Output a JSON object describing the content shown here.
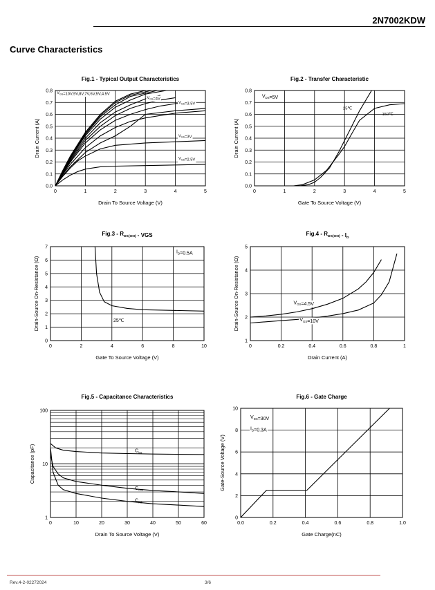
{
  "header": {
    "part_number": "2N7002KDW",
    "section_title": "Curve Characteristics"
  },
  "footer": {
    "revision": "Rev.4-2-02272024",
    "page": "3/6"
  },
  "chart_data": [
    {
      "id": "fig1",
      "type": "line",
      "title": "Fig.1 - Typical Output Characteristics",
      "xlabel": "Drain To Source Voltage (V)",
      "ylabel": "Drain Current (A)",
      "xlim": [
        0,
        5
      ],
      "ylim": [
        0,
        0.8
      ],
      "xticks": [
        0,
        1,
        2,
        3,
        4,
        5
      ],
      "yticks": [
        0.0,
        0.1,
        0.2,
        0.3,
        0.4,
        0.5,
        0.6,
        0.7,
        0.8
      ],
      "ytick_labels": [
        "0.0",
        "0.1",
        "0.2",
        "0.3",
        "0.4",
        "0.5",
        "0.6",
        "0.7",
        "0.8"
      ],
      "grid": true,
      "series": [
        {
          "name": "VGS=10V",
          "x": [
            0,
            0.25,
            0.5,
            1,
            1.5,
            2,
            2.5,
            3
          ],
          "y": [
            0,
            0.13,
            0.25,
            0.45,
            0.6,
            0.71,
            0.77,
            0.8
          ]
        },
        {
          "name": "VGS=9V",
          "x": [
            0,
            0.25,
            0.5,
            1,
            1.5,
            2,
            2.5,
            3.2
          ],
          "y": [
            0,
            0.125,
            0.24,
            0.44,
            0.59,
            0.7,
            0.76,
            0.8
          ]
        },
        {
          "name": "VGS=8V",
          "x": [
            0,
            0.25,
            0.5,
            1,
            1.5,
            2,
            2.5,
            3.4
          ],
          "y": [
            0,
            0.12,
            0.235,
            0.43,
            0.58,
            0.68,
            0.75,
            0.8
          ]
        },
        {
          "name": "VGS=7V",
          "x": [
            0,
            0.25,
            0.5,
            1,
            1.5,
            2,
            2.5,
            3,
            3.7
          ],
          "y": [
            0,
            0.115,
            0.23,
            0.42,
            0.56,
            0.66,
            0.72,
            0.77,
            0.8
          ]
        },
        {
          "name": "VGS=6V",
          "x": [
            0,
            0.25,
            0.5,
            1,
            1.5,
            2,
            2.5,
            3,
            3.5
          ],
          "y": [
            0,
            0.11,
            0.22,
            0.4,
            0.53,
            0.62,
            0.68,
            0.73,
            0.76
          ]
        },
        {
          "name": "VGS=5V",
          "x": [
            0,
            0.25,
            0.5,
            1,
            1.5,
            2,
            2.5,
            3,
            3.5,
            4
          ],
          "y": [
            0,
            0.105,
            0.21,
            0.38,
            0.5,
            0.59,
            0.65,
            0.69,
            0.72,
            0.74
          ]
        },
        {
          "name": "VGS=4.5V",
          "x": [
            0,
            0.25,
            0.5,
            1,
            1.5,
            2,
            2.5,
            3,
            3.5,
            4,
            4.5
          ],
          "y": [
            0,
            0.1,
            0.2,
            0.36,
            0.47,
            0.55,
            0.6,
            0.64,
            0.67,
            0.69,
            0.7
          ]
        },
        {
          "name": "VGS=4V",
          "x": [
            0,
            0.25,
            0.5,
            1,
            1.5,
            2,
            2.5,
            3,
            3.5,
            4,
            4.5,
            5
          ],
          "y": [
            0,
            0.095,
            0.18,
            0.32,
            0.42,
            0.49,
            0.54,
            0.57,
            0.59,
            0.61,
            0.62,
            0.63
          ]
        },
        {
          "name": "VGS=3.5V",
          "x": [
            0,
            0.25,
            0.5,
            1,
            1.5,
            2,
            2.5,
            3,
            4,
            5
          ],
          "y": [
            0,
            0.085,
            0.16,
            0.28,
            0.36,
            0.42,
            0.5,
            0.6,
            0.63,
            0.65
          ]
        },
        {
          "name": "VGS=3V",
          "x": [
            0,
            0.25,
            0.5,
            0.75,
            1,
            1.5,
            2,
            3,
            4,
            5
          ],
          "y": [
            0,
            0.08,
            0.15,
            0.21,
            0.25,
            0.31,
            0.34,
            0.36,
            0.37,
            0.38
          ]
        },
        {
          "name": "VGS=2.5V",
          "x": [
            0,
            0.25,
            0.5,
            0.75,
            1,
            1.5,
            2,
            3,
            4,
            5
          ],
          "y": [
            0,
            0.05,
            0.09,
            0.12,
            0.14,
            0.16,
            0.165,
            0.17,
            0.175,
            0.18
          ]
        }
      ],
      "annotations": [
        "VGS=10V,9V,8V,7V,6V,5V,4.5V",
        "VGS=4V",
        "VGS=3.5V",
        "VGS=3V",
        "VGS=2.5V"
      ]
    },
    {
      "id": "fig2",
      "type": "line",
      "title": "Fig.2 - Transfer Characteristic",
      "xlabel": "Gate To Source Voltage (V)",
      "ylabel": "Drain Current (A)",
      "xlim": [
        0,
        5
      ],
      "ylim": [
        0,
        0.8
      ],
      "xticks": [
        0,
        1,
        2,
        3,
        4,
        5
      ],
      "yticks": [
        0.0,
        0.1,
        0.2,
        0.3,
        0.4,
        0.5,
        0.6,
        0.7,
        0.8
      ],
      "ytick_labels": [
        "0.0",
        "0.1",
        "0.2",
        "0.3",
        "0.4",
        "0.5",
        "0.6",
        "0.7",
        "0.8"
      ],
      "grid": true,
      "series": [
        {
          "name": "25℃",
          "x": [
            0,
            1.5,
            1.8,
            2,
            2.2,
            2.5,
            2.8,
            3,
            3.2,
            3.5,
            3.9
          ],
          "y": [
            0,
            0,
            0.01,
            0.03,
            0.07,
            0.15,
            0.28,
            0.38,
            0.48,
            0.63,
            0.8
          ]
        },
        {
          "name": "150℃",
          "x": [
            0,
            1.3,
            1.6,
            2,
            2.4,
            2.8,
            3,
            3.2,
            3.5,
            4,
            4.5,
            5
          ],
          "y": [
            0,
            0,
            0.01,
            0.05,
            0.13,
            0.26,
            0.33,
            0.42,
            0.55,
            0.65,
            0.68,
            0.69
          ]
        }
      ],
      "annotations": [
        "VDS=5V",
        "25℃",
        "150℃"
      ]
    },
    {
      "id": "fig3",
      "type": "line",
      "title": "Fig.3 - RDS(ON) - VGS",
      "xlabel": "Gate To Source Voltage (V)",
      "ylabel": "Drain-Source On-Resistance (Ω)",
      "xlim": [
        0,
        10
      ],
      "ylim": [
        0,
        7
      ],
      "xticks": [
        0,
        2,
        4,
        6,
        8,
        10
      ],
      "yticks": [
        0,
        1,
        2,
        3,
        4,
        5,
        6,
        7
      ],
      "ytick_labels": [
        "0",
        "1",
        "2",
        "3",
        "4",
        "5",
        "6",
        "7"
      ],
      "grid": true,
      "series": [
        {
          "name": "25℃",
          "x": [
            2.9,
            3,
            3.2,
            3.5,
            4,
            5,
            6,
            8,
            10
          ],
          "y": [
            7,
            5,
            3.6,
            2.9,
            2.6,
            2.4,
            2.3,
            2.25,
            2.2
          ]
        }
      ],
      "annotations": [
        "ID=0.5A",
        "25℃"
      ]
    },
    {
      "id": "fig4",
      "type": "line",
      "title": "Fig.4 - RDS(ON) - ID",
      "xlabel": "Drain Current (A)",
      "ylabel": "Drain-Source On-Resistance (Ω)",
      "xlim": [
        0,
        1
      ],
      "ylim": [
        1,
        5
      ],
      "xticks": [
        0,
        0.2,
        0.4,
        0.6,
        0.8,
        1
      ],
      "xtick_labels": [
        "0",
        "0.2",
        "0.4",
        "0.6",
        "0.8",
        "1"
      ],
      "yticks": [
        1,
        2,
        3,
        4,
        5
      ],
      "ytick_labels": [
        "1",
        "2",
        "3",
        "4",
        "5"
      ],
      "grid": true,
      "series": [
        {
          "name": "VGS=4.5V",
          "x": [
            0,
            0.1,
            0.2,
            0.3,
            0.4,
            0.5,
            0.6,
            0.7,
            0.75,
            0.8,
            0.85
          ],
          "y": [
            2,
            2.05,
            2.12,
            2.22,
            2.36,
            2.55,
            2.8,
            3.2,
            3.5,
            3.9,
            4.45
          ]
        },
        {
          "name": "VGS=10V",
          "x": [
            0,
            0.1,
            0.2,
            0.3,
            0.4,
            0.5,
            0.6,
            0.7,
            0.8,
            0.85,
            0.9,
            0.95
          ],
          "y": [
            1.75,
            1.8,
            1.85,
            1.9,
            1.96,
            2.04,
            2.15,
            2.3,
            2.6,
            2.95,
            3.5,
            4.7
          ]
        }
      ],
      "annotations": [
        "VGS=4.5V",
        "VGS=10V"
      ]
    },
    {
      "id": "fig5",
      "type": "line",
      "title": "Fig.5 - Capacitance Characteristics",
      "xlabel": "Drain To Source Voltage (V)",
      "ylabel": "Capacitance (pF)",
      "xlim": [
        0,
        60
      ],
      "ylim": [
        1,
        100
      ],
      "yscale": "log",
      "xticks": [
        0,
        10,
        20,
        30,
        40,
        50,
        60
      ],
      "yticks": [
        1,
        10,
        100
      ],
      "ytick_labels": [
        "1",
        "10",
        "100"
      ],
      "grid": true,
      "series": [
        {
          "name": "Ciss",
          "x": [
            0,
            2,
            5,
            10,
            20,
            30,
            40,
            50,
            60
          ],
          "y": [
            24,
            20,
            18,
            17,
            16,
            15.6,
            15.3,
            15.1,
            15
          ]
        },
        {
          "name": "Coss",
          "x": [
            0,
            1,
            3,
            5,
            10,
            20,
            30,
            40,
            50,
            60
          ],
          "y": [
            15,
            9,
            6.5,
            5.5,
            4.7,
            4,
            3.5,
            3.2,
            3,
            2.8
          ]
        },
        {
          "name": "Crss",
          "x": [
            0,
            1,
            3,
            5,
            10,
            20,
            30,
            40,
            50,
            60
          ],
          "y": [
            20,
            7,
            4,
            3.3,
            2.8,
            2.3,
            2,
            1.8,
            1.7,
            1.6
          ]
        }
      ],
      "annotations": [
        "Ciss",
        "Coss",
        "Crss"
      ]
    },
    {
      "id": "fig6",
      "type": "line",
      "title": "Fig.6 - Gate Charge",
      "xlabel": "Gate Charge(nC)",
      "ylabel": "Gate-Source Voltage (V)",
      "xlim": [
        0,
        1.0
      ],
      "ylim": [
        0,
        10
      ],
      "xticks": [
        0,
        0.2,
        0.4,
        0.6,
        0.8,
        1.0
      ],
      "xtick_labels": [
        "0.0",
        "0.2",
        "0.4",
        "0.6",
        "0.8",
        "1.0"
      ],
      "yticks": [
        0,
        2,
        4,
        6,
        8,
        10
      ],
      "ytick_labels": [
        "0",
        "2",
        "4",
        "6",
        "8",
        "10"
      ],
      "grid": true,
      "series": [
        {
          "name": "VGS",
          "x": [
            0,
            0.16,
            0.41,
            0.92
          ],
          "y": [
            0,
            2.5,
            2.5,
            10
          ]
        }
      ],
      "annotations": [
        "VDS=30V",
        "ID=0.3A"
      ]
    }
  ]
}
